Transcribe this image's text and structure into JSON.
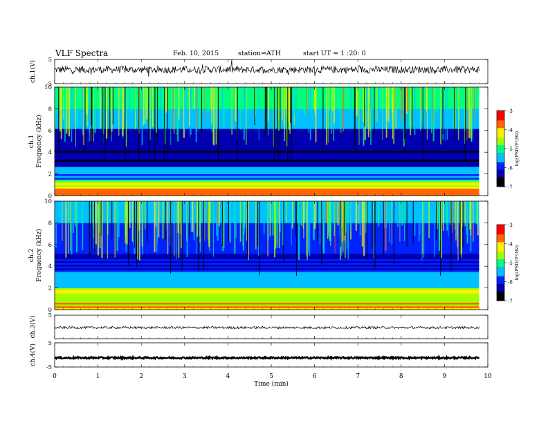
{
  "header": {
    "title": "VLF Spectra",
    "date": "Feb. 10, 2015",
    "station": "station=ATH",
    "start_ut": "start UT =  1 :20: 0"
  },
  "colors": {
    "axis": "#000000",
    "colormap": [
      "#000000",
      "#0000b0",
      "#0022ff",
      "#00c0ff",
      "#00ff80",
      "#a0ff00",
      "#ffee00",
      "#ff6600",
      "#ff0000",
      "#ffffff"
    ]
  },
  "chart_data": [
    {
      "type": "line",
      "ylabel": "ch.1(V)",
      "ylim": [
        -5,
        5
      ],
      "yticks": [
        "5",
        "-5"
      ],
      "xlim": [
        0,
        10
      ],
      "series": [
        {
          "values": []
        }
      ]
    },
    {
      "type": "heatmap",
      "ylabel": "Frequency (kHz)",
      "channel_label": "ch.1",
      "ylim": [
        0,
        10
      ],
      "yticks": [
        "0",
        "2",
        "4",
        "6",
        "8",
        "10"
      ],
      "xlim": [
        0,
        9.8
      ],
      "colorbar": {
        "label": "log(PSD(V²/Hz)",
        "ticks": [
          "-3",
          "-4",
          "-5",
          "-6",
          "-7"
        ],
        "range": [
          -7,
          -3
        ]
      }
    },
    {
      "type": "heatmap",
      "ylabel": "Frequency (kHz)",
      "channel_label": "ch.2",
      "ylim": [
        0,
        10
      ],
      "yticks": [
        "0",
        "2",
        "4",
        "6",
        "8",
        "10"
      ],
      "xlim": [
        0,
        9.8
      ],
      "colorbar": {
        "label": "log(PSD(V²/Hz)",
        "ticks": [
          "-3",
          "-4",
          "-5",
          "-6",
          "-7"
        ],
        "range": [
          -7,
          -3
        ]
      }
    },
    {
      "type": "line",
      "ylabel": "ch.3(V)",
      "ylim": [
        -5,
        5
      ],
      "yticks": [
        "5"
      ],
      "xlim": [
        0,
        10
      ],
      "series": [
        {
          "values": []
        }
      ]
    },
    {
      "type": "line",
      "ylabel": "ch.4(V)",
      "ylim": [
        -5,
        5
      ],
      "yticks": [
        "5",
        "-5"
      ],
      "xlim": [
        0,
        10
      ],
      "series": [
        {
          "values": []
        }
      ]
    }
  ],
  "x_axis": {
    "label": "Time (min)",
    "ticks": [
      "0",
      "1",
      "2",
      "3",
      "4",
      "5",
      "6",
      "7",
      "8",
      "9",
      "10"
    ],
    "range": [
      0,
      10
    ]
  }
}
